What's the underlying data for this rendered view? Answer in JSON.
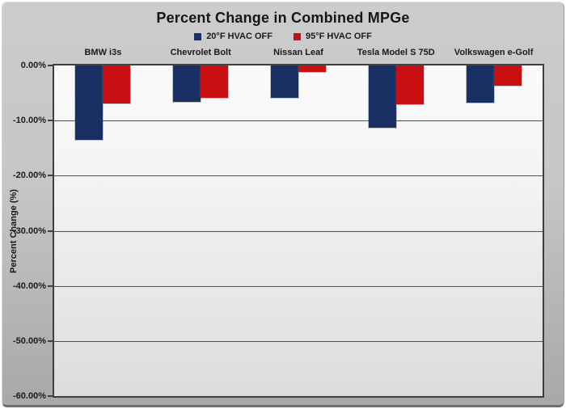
{
  "chart_data": {
    "type": "bar",
    "title": "Percent Change in Combined MPGe",
    "categories": [
      "BMW i3s",
      "Chevrolet Bolt",
      "Nissan Leaf",
      "Tesla Model S 75D",
      "Volkswagen e-Golf"
    ],
    "series": [
      {
        "name": "20°F HVAC OFF",
        "color": "#183063",
        "values": [
          -13.5,
          -6.6,
          -5.8,
          -11.3,
          -6.8
        ]
      },
      {
        "name": "95°F HVAC OFF",
        "color": "#c90f12",
        "values": [
          -6.9,
          -5.8,
          -1.2,
          -7.0,
          -3.7
        ]
      }
    ],
    "xlabel": "",
    "ylabel": "Percent Change (%)",
    "ylim": [
      -60,
      0
    ],
    "ytick_labels": [
      "0.00%",
      "-10.00%",
      "-20.00%",
      "-30.00%",
      "-40.00%",
      "-50.00%",
      "-60.00%"
    ],
    "grid": true,
    "legend_position": "top",
    "category_labels_position": "top"
  }
}
